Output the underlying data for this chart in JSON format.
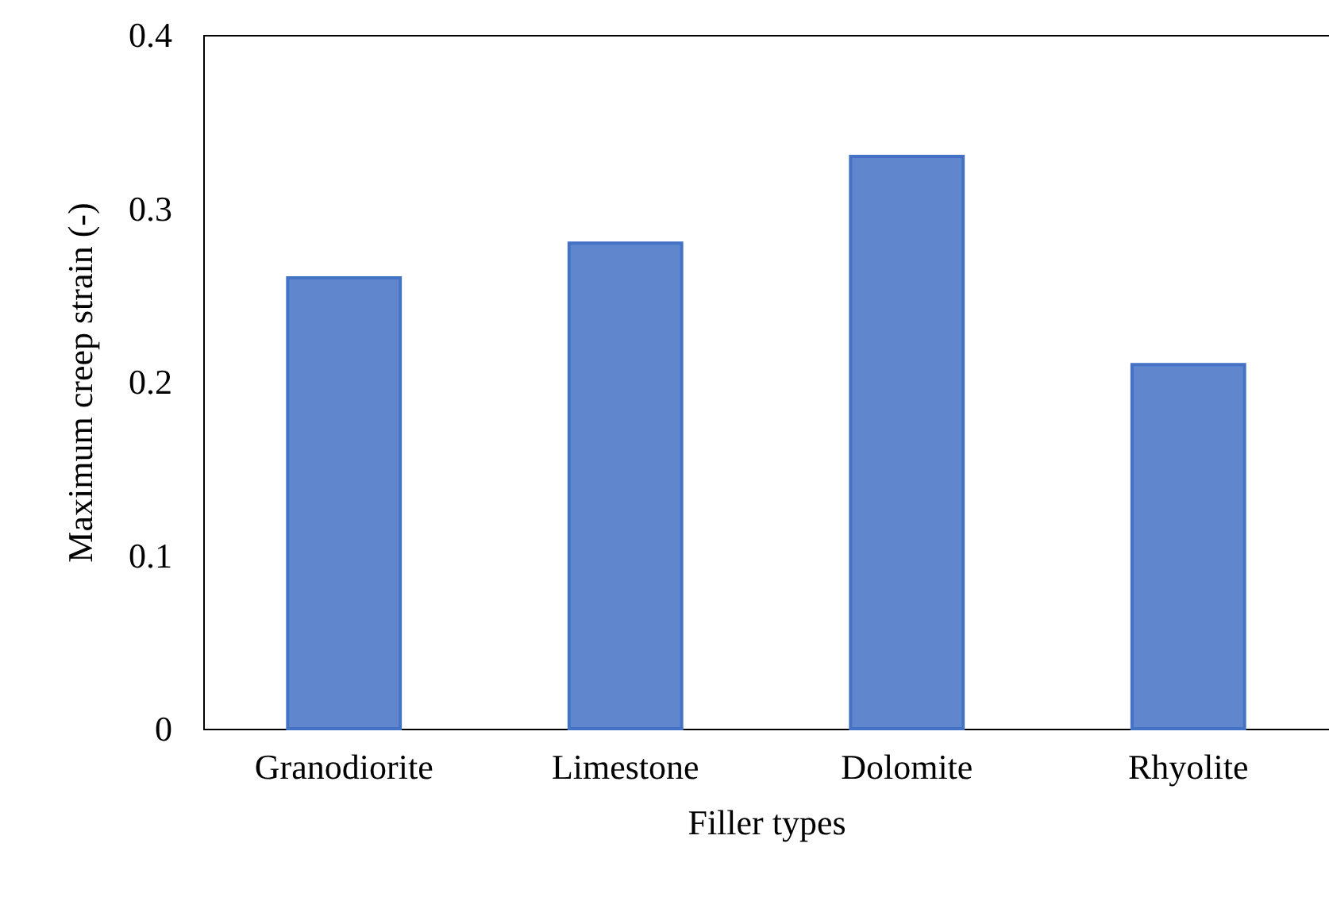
{
  "chart_data": {
    "type": "bar",
    "xlabel": "Filler types",
    "ylabel": "Maximum creep strain (-)",
    "categories": [
      "Granodiorite",
      "Limestone",
      "Dolomite",
      "Rhyolite"
    ],
    "series": [
      {
        "color": "#4472c4",
        "values": [
          0.26,
          0.28,
          0.33,
          0.21
        ]
      }
    ],
    "ylim": [
      0,
      0.4
    ],
    "yticks": [
      0,
      0.1,
      0.2,
      0.3,
      0.4
    ],
    "grid": false
  }
}
